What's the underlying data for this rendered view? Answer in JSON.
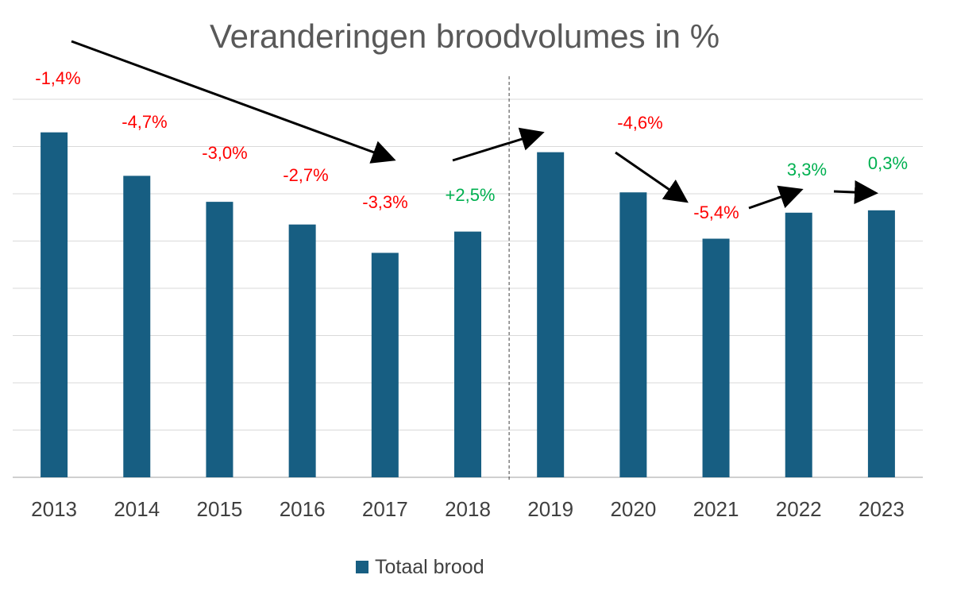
{
  "chart_data": {
    "type": "bar",
    "title": "Veranderingen broodvolumes in %",
    "categories": [
      "2013",
      "2014",
      "2015",
      "2016",
      "2017",
      "2018",
      "2019",
      "2020",
      "2021",
      "2022",
      "2023"
    ],
    "series": [
      {
        "name": "Totaal brood",
        "color": "#175E82",
        "values": [
          7.3,
          6.38,
          5.83,
          5.35,
          4.75,
          5.2,
          6.88,
          6.03,
          5.05,
          5.6,
          5.65
        ]
      }
    ],
    "ylim": [
      0,
      8
    ],
    "y_tick_labels_shown": false,
    "grid": true,
    "legend": "bottom",
    "divider_after_category": "2018",
    "annotations": [
      {
        "text": "-1,4%",
        "color": "#FF0000"
      },
      {
        "text": "-4,7%",
        "color": "#FF0000"
      },
      {
        "text": "-3,0%",
        "color": "#FF0000"
      },
      {
        "text": "-2,7%",
        "color": "#FF0000"
      },
      {
        "text": "-3,3%",
        "color": "#FF0000"
      },
      {
        "text": "+2,5%",
        "color": "#00B050"
      },
      {
        "text": "-4,6%",
        "color": "#FF0000"
      },
      {
        "text": "-5,4%",
        "color": "#FF0000"
      },
      {
        "text": "3,3%",
        "color": "#00B050"
      },
      {
        "text": "0,3%",
        "color": "#00B050"
      }
    ]
  }
}
